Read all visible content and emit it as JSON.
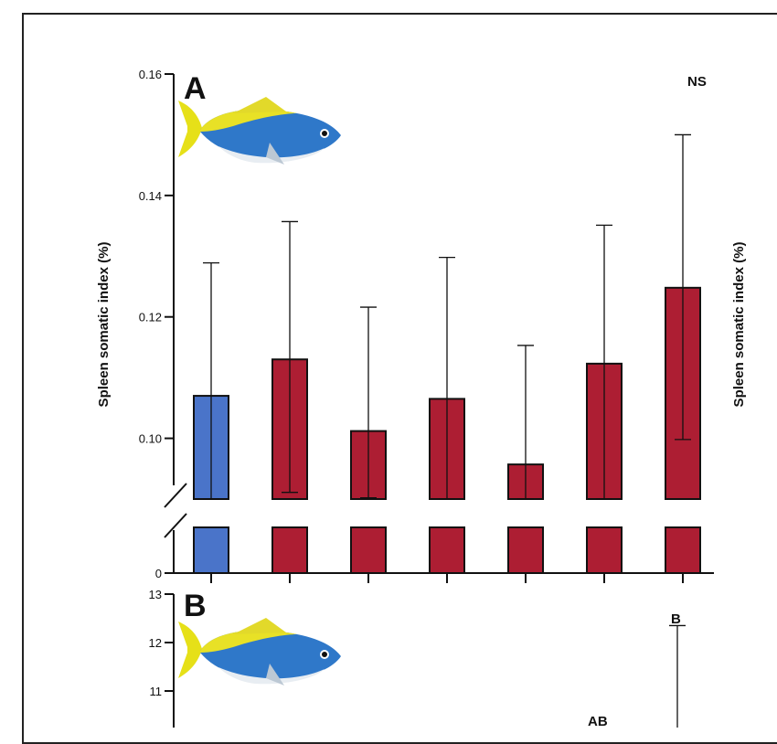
{
  "chart_data": [
    {
      "panel": "A",
      "type": "bar",
      "ylabel": "Spleen somatic index (%)",
      "right_ylabel": "Spleen somatic index (%)",
      "annotation": "NS",
      "ylim": [
        0.09,
        0.16
      ],
      "broken_axis": true,
      "y_ticks": [
        "0.10",
        "0.12",
        "0.14",
        "0.16"
      ],
      "y_bottom_tick": "0",
      "series": [
        {
          "values": [
            0.107,
            0.113,
            0.1012,
            0.1065,
            0.0957,
            0.1123,
            0.1248
          ],
          "lower": [
            0.09,
            0.0911,
            0.0902,
            0.09,
            0.09,
            0.09,
            0.0998
          ],
          "upper": [
            0.1289,
            0.1357,
            0.1216,
            0.1298,
            0.1153,
            0.1351,
            0.15
          ]
        }
      ],
      "bar_colors": [
        "#4a74c9",
        "#ad1e33",
        "#ad1e33",
        "#ad1e33",
        "#ad1e33",
        "#ad1e33",
        "#ad1e33"
      ]
    },
    {
      "panel": "B",
      "type": "bar",
      "y_ticks": [
        "11",
        "12",
        "13"
      ],
      "ylim": [
        10.2,
        13
      ],
      "annotations": [
        "AB",
        "B"
      ],
      "visible_error_bar_tops": [
        12.35
      ],
      "note": "partially visible (cropped at bottom)"
    }
  ],
  "icons": [
    "fish-illustration-icon"
  ],
  "colors": {
    "control": "#4a74c9",
    "treatment": "#ad1e33",
    "axis": "#111111"
  }
}
